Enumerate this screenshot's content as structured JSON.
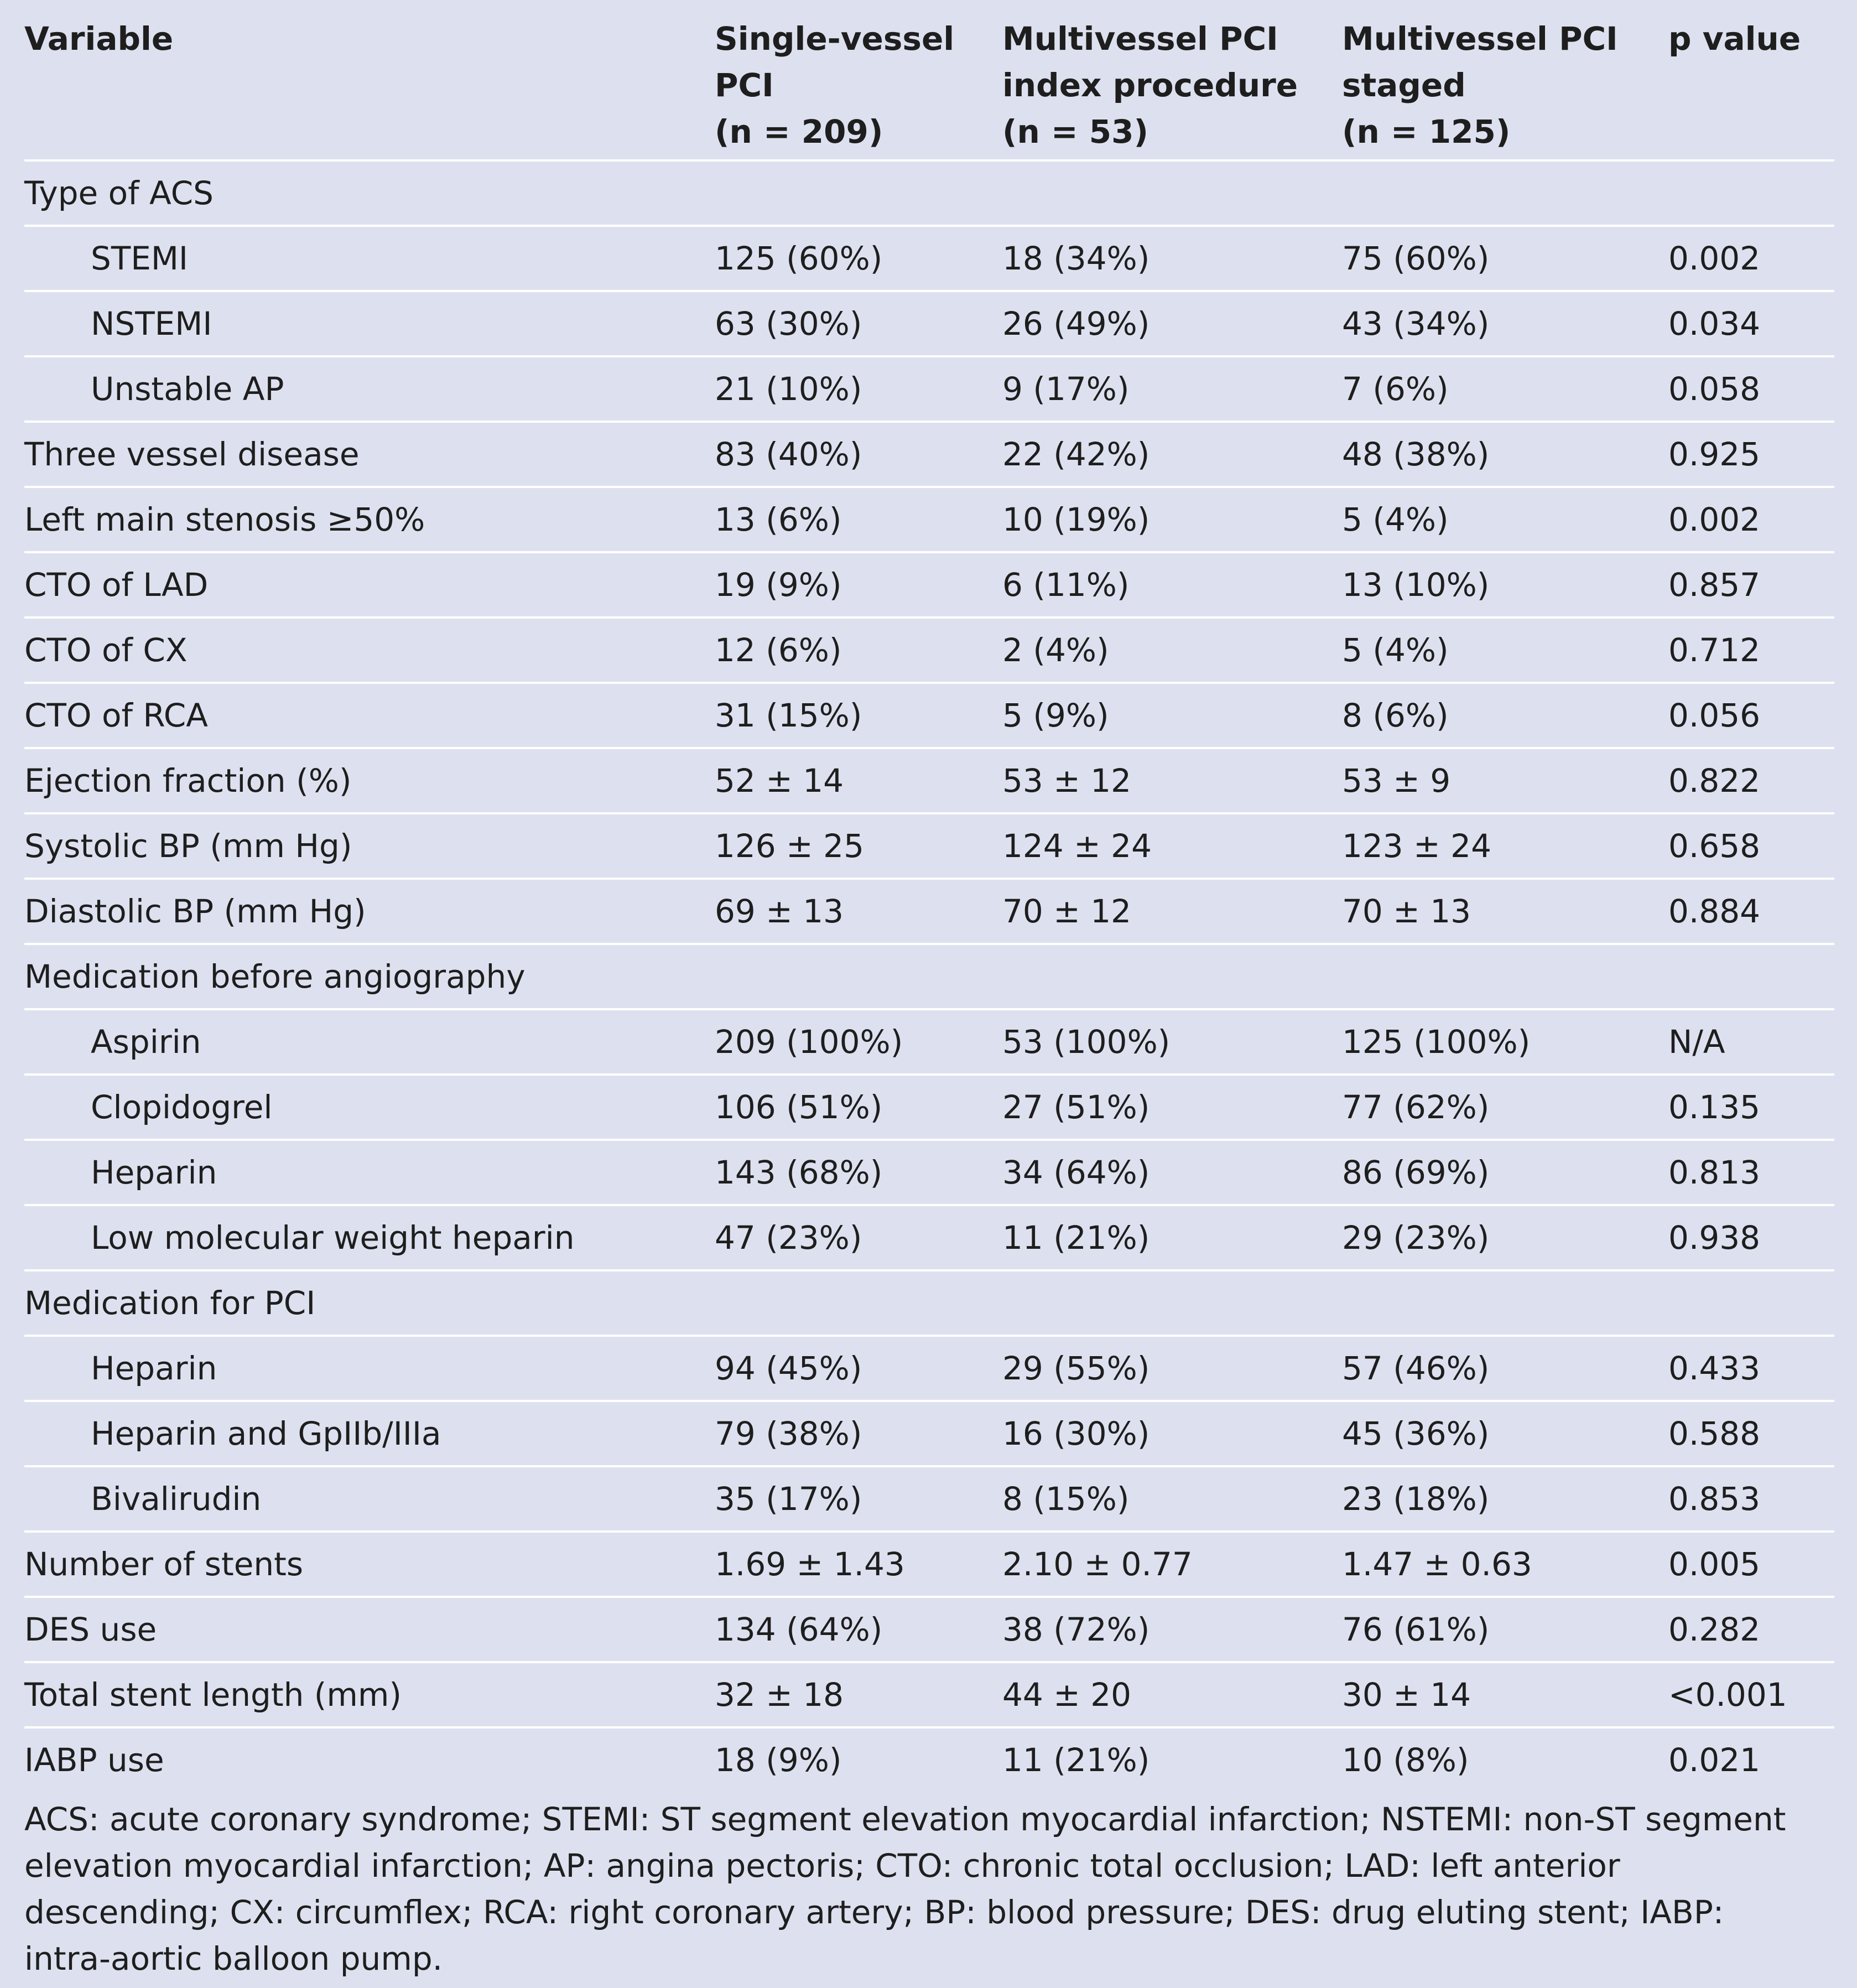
{
  "table": {
    "headers": [
      [
        "Variable"
      ],
      [
        "Single-vessel",
        "PCI",
        "(n = 209)"
      ],
      [
        "Multivessel PCI",
        "index procedure",
        "(n = 53)"
      ],
      [
        "Multivessel PCI",
        "staged",
        "(n = 125)"
      ],
      [
        "p value"
      ]
    ],
    "rows": [
      {
        "label": "Type of ACS",
        "indent": false,
        "values": [
          "",
          "",
          "",
          ""
        ]
      },
      {
        "label": "STEMI",
        "indent": true,
        "values": [
          "125 (60%)",
          "18 (34%)",
          "75 (60%)",
          "0.002"
        ]
      },
      {
        "label": "NSTEMI",
        "indent": true,
        "values": [
          "63 (30%)",
          "26 (49%)",
          "43 (34%)",
          "0.034"
        ]
      },
      {
        "label": "Unstable AP",
        "indent": true,
        "values": [
          "21 (10%)",
          "9 (17%)",
          "7 (6%)",
          "0.058"
        ]
      },
      {
        "label": "Three vessel disease",
        "indent": false,
        "values": [
          "83 (40%)",
          "22 (42%)",
          "48 (38%)",
          "0.925"
        ]
      },
      {
        "label": "Left main stenosis ≥50%",
        "indent": false,
        "values": [
          "13 (6%)",
          "10 (19%)",
          "5 (4%)",
          "0.002"
        ]
      },
      {
        "label": "CTO of LAD",
        "indent": false,
        "values": [
          "19 (9%)",
          "6 (11%)",
          "13 (10%)",
          "0.857"
        ]
      },
      {
        "label": "CTO of CX",
        "indent": false,
        "values": [
          "12 (6%)",
          "2 (4%)",
          "5 (4%)",
          "0.712"
        ]
      },
      {
        "label": "CTO of RCA",
        "indent": false,
        "values": [
          "31 (15%)",
          "5 (9%)",
          "8 (6%)",
          "0.056"
        ]
      },
      {
        "label": "Ejection fraction (%)",
        "indent": false,
        "values": [
          "52 ± 14",
          "53 ± 12",
          "53 ± 9",
          "0.822"
        ]
      },
      {
        "label": "Systolic BP (mm Hg)",
        "indent": false,
        "values": [
          "126 ± 25",
          "124 ± 24",
          "123 ± 24",
          "0.658"
        ]
      },
      {
        "label": "Diastolic BP (mm Hg)",
        "indent": false,
        "values": [
          "69 ± 13",
          "70 ± 12",
          "70 ± 13",
          "0.884"
        ]
      },
      {
        "label": "Medication before angiography",
        "indent": false,
        "values": [
          "",
          "",
          "",
          ""
        ]
      },
      {
        "label": "Aspirin",
        "indent": true,
        "values": [
          "209 (100%)",
          "53 (100%)",
          "125 (100%)",
          "N/A"
        ]
      },
      {
        "label": "Clopidogrel",
        "indent": true,
        "values": [
          "106 (51%)",
          "27 (51%)",
          "77 (62%)",
          "0.135"
        ]
      },
      {
        "label": "Heparin",
        "indent": true,
        "values": [
          "143 (68%)",
          "34 (64%)",
          "86 (69%)",
          "0.813"
        ]
      },
      {
        "label": "Low molecular weight heparin",
        "indent": true,
        "values": [
          "47 (23%)",
          "11 (21%)",
          "29 (23%)",
          "0.938"
        ]
      },
      {
        "label": "Medication for PCI",
        "indent": false,
        "values": [
          "",
          "",
          "",
          ""
        ]
      },
      {
        "label": "Heparin",
        "indent": true,
        "values": [
          "94 (45%)",
          "29 (55%)",
          "57 (46%)",
          "0.433"
        ]
      },
      {
        "label": "Heparin and GpIIb/IIIa",
        "indent": true,
        "values": [
          "79 (38%)",
          "16 (30%)",
          "45 (36%)",
          "0.588"
        ]
      },
      {
        "label": "Bivalirudin",
        "indent": true,
        "values": [
          "35 (17%)",
          "8 (15%)",
          "23 (18%)",
          "0.853"
        ]
      },
      {
        "label": "Number of stents",
        "indent": false,
        "values": [
          "1.69 ± 1.43",
          "2.10 ± 0.77",
          "1.47 ± 0.63",
          "0.005"
        ]
      },
      {
        "label": "DES use",
        "indent": false,
        "values": [
          "134 (64%)",
          "38 (72%)",
          "76 (61%)",
          "0.282"
        ]
      },
      {
        "label": "Total stent length (mm)",
        "indent": false,
        "values": [
          "32 ± 18",
          "44 ± 20",
          "30 ± 14",
          "<0.001"
        ]
      },
      {
        "label": "IABP use",
        "indent": false,
        "values": [
          "18 (9%)",
          "11 (21%)",
          "10 (8%)",
          "0.021"
        ]
      }
    ]
  },
  "footnote": "ACS: acute coronary syndrome; STEMI: ST segment elevation myocardial infarction; NSTEMI: non-ST segment elevation myocardial infarction; AP: angina pectoris; CTO: chronic total occlusion; LAD: left anterior descending; CX: circumflex; RCA: right coronary artery; BP: blood pressure; DES: drug eluting stent; IABP: intra-aortic balloon pump."
}
